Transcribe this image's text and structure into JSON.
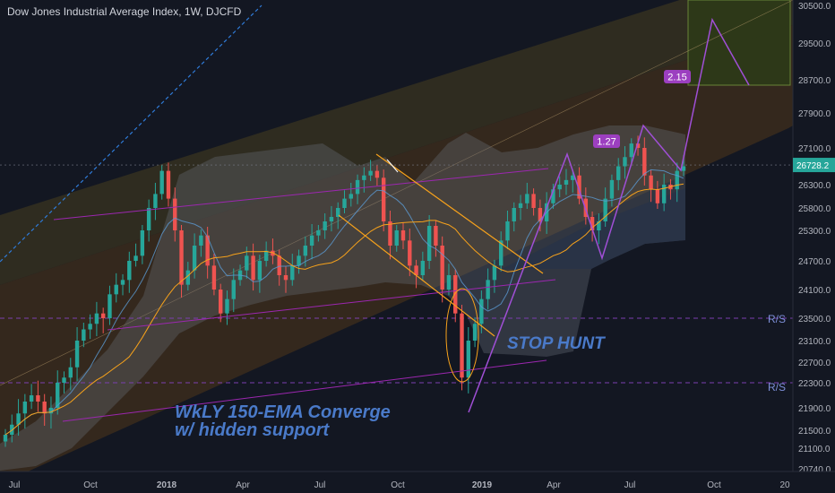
{
  "header": {
    "title": "Dow Jones Industrial Average Index, 1W, DJCFD"
  },
  "annotations": {
    "stop_hunt": "STOP HUNT",
    "converge_line1": "WkLY 150-EMA Converge",
    "converge_line2": "w/ hidden support",
    "rs_upper": "R/S",
    "rs_lower": "R/S",
    "fib_127": "1.27",
    "fib_215": "2.15"
  },
  "colors": {
    "background": "#131722",
    "up_candle": "#26a69a",
    "down_candle": "#ef5350",
    "accent_purple": "#9c27b0",
    "orange": "#f7a21b",
    "annotation_blue": "#4a7ac9",
    "last_price_badge": "#26a69a"
  },
  "chart_data": {
    "type": "candlestick",
    "title": "Dow Jones Industrial Average Index, 1W, DJCFD",
    "last_price": 26728.2,
    "x_tick_labels": [
      "Jul",
      "Oct",
      "2018",
      "Apr",
      "Jul",
      "Oct",
      "2019",
      "Apr",
      "Jul",
      "Oct",
      "20"
    ],
    "y_tick_labels": [
      "30500.0",
      "29500.0",
      "28700.0",
      "27900.0",
      "27100.0",
      "26300.0",
      "25800.0",
      "25300.0",
      "24700.0",
      "24100.0",
      "23500.0",
      "23100.0",
      "22700.0",
      "22300.0",
      "21900.0",
      "21500.0",
      "21100.0",
      "20740.0"
    ],
    "ylim": [
      20600,
      30700
    ],
    "horizontal_levels": [
      {
        "label": "R/S",
        "value": 23500
      },
      {
        "label": "R/S",
        "value": 22300
      }
    ],
    "approx_weekly_closes": {
      "2017": [
        21400,
        21600,
        21800,
        22000,
        22100,
        22000,
        21800,
        21900,
        22300,
        22400,
        22600,
        23100,
        23300,
        23400,
        23600,
        23500,
        24000,
        24200,
        24300,
        24700,
        24800,
        25300,
        25800,
        26100,
        26600
      ],
      "2018": [
        26000,
        25300,
        24200,
        24500,
        25000,
        25200,
        24600,
        24100,
        23600,
        23900,
        24300,
        24500,
        24800,
        24300,
        24700,
        24900,
        24800,
        24400,
        24300,
        24600,
        24800,
        25000,
        25200,
        25300,
        25500,
        25600,
        25800,
        26000,
        26100,
        26400,
        26500,
        26600,
        26450,
        25500,
        25000,
        25300,
        25100,
        24600,
        24400,
        24700,
        25400,
        25000,
        24100,
        24400,
        23600,
        22400,
        23100
      ],
      "2019": [
        23400,
        23900,
        24300,
        24600,
        25100,
        25500,
        25800,
        25900,
        26100,
        25800,
        25500,
        25900,
        26200,
        26300,
        26400,
        26500,
        26000,
        25600,
        25300,
        25500,
        26000,
        26400,
        26700,
        26900,
        27200,
        27100,
        26500,
        26200,
        25900,
        26300,
        26200,
        26600,
        26700
      ]
    },
    "projection": {
      "fib_extensions": [
        "1.27",
        "2.15"
      ],
      "target_top": 30000,
      "pullback_to": 28700
    }
  }
}
